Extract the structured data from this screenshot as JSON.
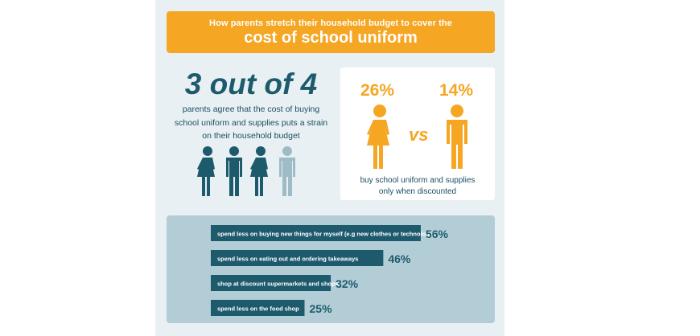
{
  "banner": {
    "subtitle": "How parents stretch their household budget to cover the",
    "title": "cost of school uniform"
  },
  "strain": {
    "headline": "3 out of 4",
    "lines": [
      "parents agree that the cost of buying",
      "school uniform and supplies puts a strain",
      "on their household budget"
    ]
  },
  "discount": {
    "left_value": "26%",
    "vs_label": "vs",
    "right_value": "14%",
    "note_lines": [
      "buy school uniform and supplies",
      "only when discounted"
    ]
  },
  "colors": {
    "orange": "#f5a623",
    "teal_dark": "#1d5a6c",
    "teal_light": "#9dbcc6"
  },
  "chart_data": {
    "type": "bar",
    "orientation": "horizontal",
    "categories": [
      "spend less on buying new things for myself (e.g new clothes or technology)",
      "spend less on eating out and ordering takeaways",
      "shop at discount supermarkets and shops",
      "spend less on the food shop"
    ],
    "values": [
      56,
      46,
      32,
      25
    ],
    "value_labels": [
      "56%",
      "46%",
      "32%",
      "25%"
    ],
    "xlim": [
      0,
      100
    ],
    "unit": "%"
  }
}
